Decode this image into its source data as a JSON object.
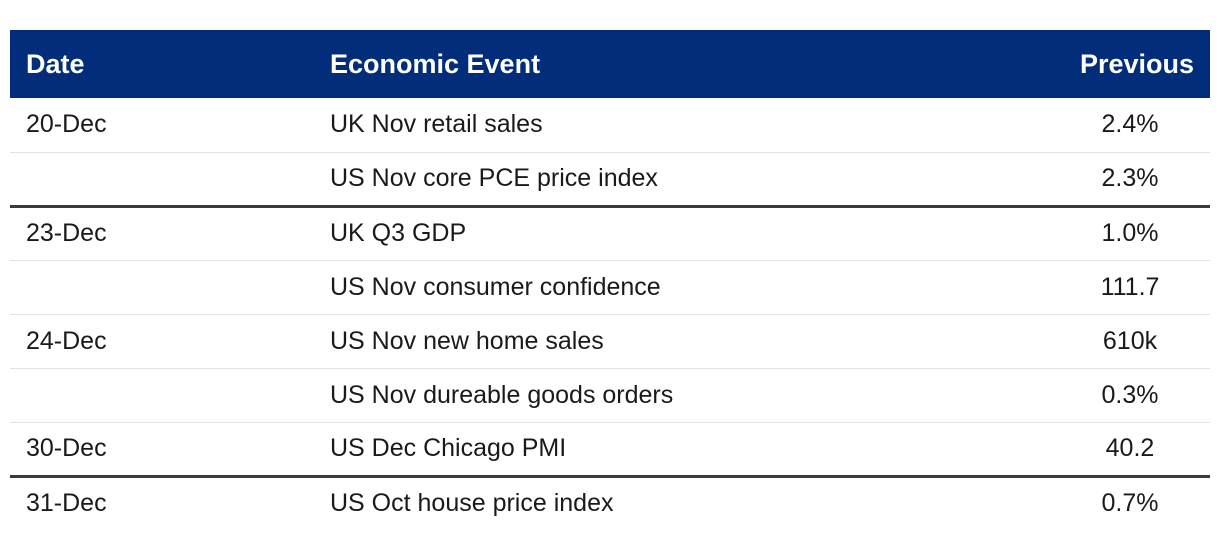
{
  "table": {
    "headers": {
      "date": "Date",
      "event": "Economic Event",
      "previous": "Previous"
    },
    "rows": [
      {
        "date": "20-Dec",
        "event": "UK Nov retail sales",
        "previous": "2.4%"
      },
      {
        "date": "",
        "event": "US Nov core PCE price index",
        "previous": "2.3%"
      },
      {
        "date": "23-Dec",
        "event": "UK Q3 GDP",
        "previous": "1.0%"
      },
      {
        "date": "",
        "event": "US Nov consumer confidence",
        "previous": "111.7"
      },
      {
        "date": "24-Dec",
        "event": "US Nov new home sales",
        "previous": "610k"
      },
      {
        "date": "",
        "event": "US Nov dureable goods orders",
        "previous": "0.3%"
      },
      {
        "date": "30-Dec",
        "event": "US Dec Chicago PMI",
        "previous": "40.2"
      },
      {
        "date": "31-Dec",
        "event": "US Oct house price index",
        "previous": "0.7%"
      }
    ]
  },
  "colors": {
    "header_background": "#022d7a",
    "header_text": "#ffffff",
    "row_divider": "#e2e2e2",
    "group_divider": "#3a3a3a"
  }
}
